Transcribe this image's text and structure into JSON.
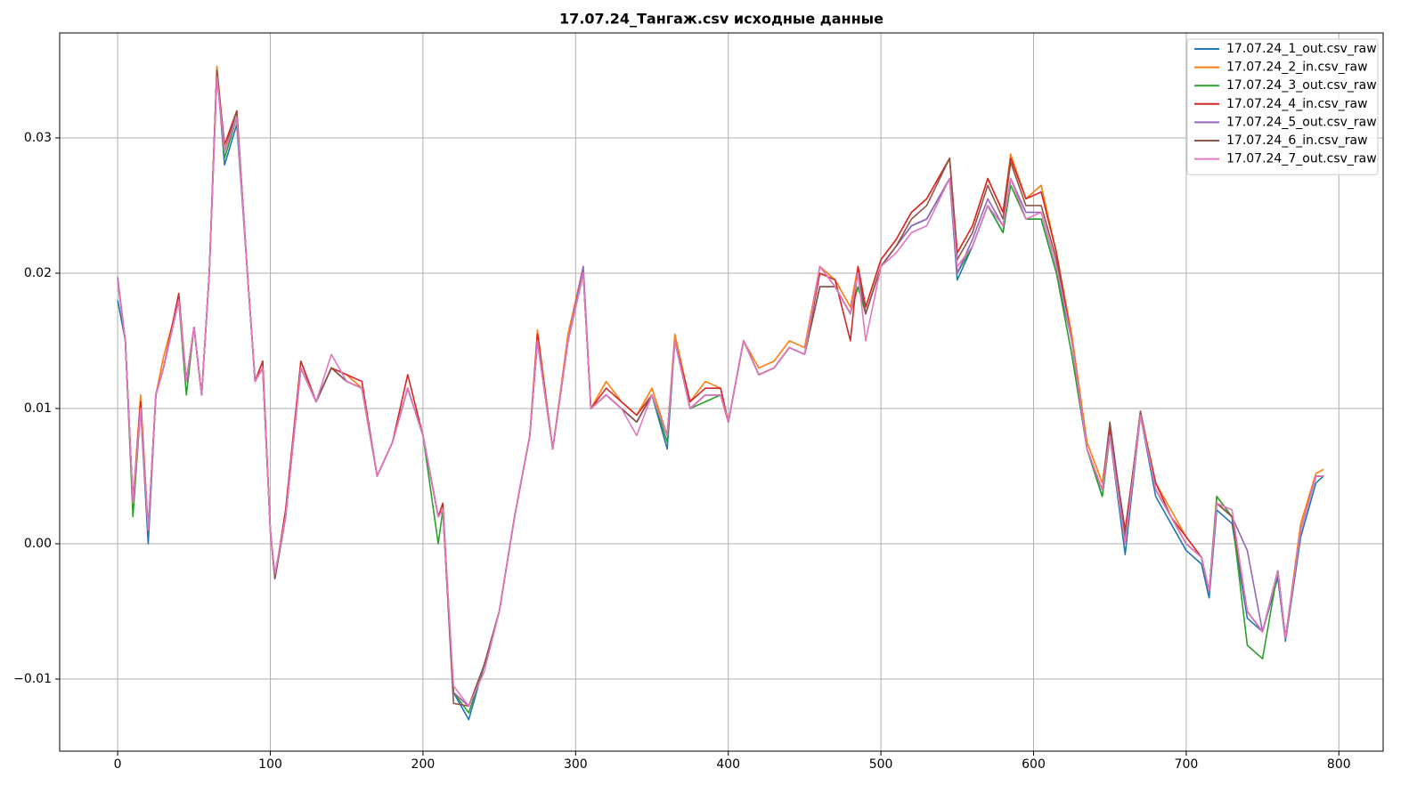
{
  "chart_data": {
    "type": "line",
    "title": "17.07.24_Тангаж.csv исходные данные",
    "x": [
      0,
      5,
      10,
      15,
      20,
      25,
      30,
      40,
      45,
      50,
      55,
      60,
      65,
      70,
      78,
      85,
      90,
      95,
      100,
      103,
      110,
      120,
      130,
      140,
      150,
      160,
      170,
      180,
      190,
      200,
      210,
      213,
      220,
      230,
      240,
      250,
      260,
      270,
      275,
      285,
      295,
      305,
      310,
      320,
      330,
      340,
      350,
      360,
      365,
      375,
      385,
      395,
      400,
      410,
      420,
      430,
      440,
      450,
      460,
      470,
      480,
      485,
      490,
      500,
      510,
      520,
      530,
      545,
      550,
      560,
      570,
      580,
      585,
      595,
      605,
      615,
      625,
      635,
      645,
      650,
      660,
      670,
      680,
      690,
      700,
      710,
      715,
      720,
      730,
      740,
      750,
      760,
      765,
      775,
      785,
      790
    ],
    "series": [
      {
        "name": "17.07.24_1_out.csv_raw",
        "color": "#1f77b4",
        "values": [
          0.018,
          0.015,
          0.003,
          0.01,
          0,
          0.011,
          0.013,
          0.018,
          0.012,
          0.016,
          0.011,
          0.02,
          0.035,
          0.028,
          0.031,
          0.02,
          0.012,
          0.013,
          0.001,
          -0.0025,
          0.002,
          0.013,
          0.0105,
          0.013,
          0.012,
          0.0115,
          0.005,
          0.0075,
          0.0115,
          0.008,
          0.002,
          0.0025,
          -0.011,
          -0.013,
          -0.009,
          -0.005,
          0.002,
          0.008,
          0.015,
          0.007,
          0.015,
          0.02,
          0.01,
          0.011,
          0.01,
          0.009,
          0.011,
          0.007,
          0.015,
          0.01,
          0.011,
          0.011,
          0.009,
          0.015,
          0.0125,
          0.013,
          0.0145,
          0.014,
          0.019,
          0.019,
          0.017,
          0.02,
          0.017,
          0.0205,
          0.022,
          0.0235,
          0.024,
          0.027,
          0.0195,
          0.022,
          0.025,
          0.023,
          0.027,
          0.024,
          0.024,
          0.02,
          0.015,
          0.007,
          0.0035,
          0.008,
          -0.0008,
          0.0095,
          0.0035,
          0.0015,
          -0.0005,
          -0.0015,
          -0.004,
          0.0025,
          0.0015,
          -0.0055,
          -0.0065,
          -0.0025,
          -0.0072,
          0.0005,
          0.0045,
          0.005
        ]
      },
      {
        "name": "17.07.24_2_in.csv_raw",
        "color": "#ff7f0e",
        "values": [
          0.0195,
          0.015,
          0.003,
          0.011,
          0.001,
          0.011,
          0.0138,
          0.018,
          0.012,
          0.016,
          0.011,
          0.02,
          0.0353,
          0.029,
          0.032,
          0.02,
          0.012,
          0.0135,
          0.001,
          -0.0025,
          0.002,
          0.0135,
          0.0105,
          0.013,
          0.0125,
          0.0115,
          0.005,
          0.0075,
          0.0115,
          0.008,
          0.002,
          0.0025,
          -0.011,
          -0.012,
          -0.009,
          -0.005,
          0.002,
          0.008,
          0.0158,
          0.007,
          0.0155,
          0.0205,
          0.01,
          0.012,
          0.0105,
          0.0095,
          0.0115,
          0.008,
          0.0155,
          0.0105,
          0.012,
          0.0115,
          0.009,
          0.015,
          0.013,
          0.0135,
          0.015,
          0.0145,
          0.0205,
          0.0195,
          0.0175,
          0.0205,
          0.0175,
          0.021,
          0.0225,
          0.0245,
          0.0255,
          0.0285,
          0.0215,
          0.0235,
          0.027,
          0.0245,
          0.0288,
          0.0255,
          0.0265,
          0.0215,
          0.0155,
          0.0075,
          0.0045,
          0.0085,
          0.0005,
          0.0098,
          0.0045,
          0.0025,
          0.0005,
          -0.001,
          -0.0035,
          0.0035,
          0.002,
          -0.005,
          -0.0065,
          -0.002,
          -0.007,
          0.0015,
          0.0052,
          0.0055
        ]
      },
      {
        "name": "17.07.24_3_out.csv_raw",
        "color": "#2ca02c",
        "values": [
          0.0195,
          0.015,
          0.002,
          0.01,
          0.001,
          0.011,
          0.013,
          0.018,
          0.011,
          0.016,
          0.011,
          0.02,
          0.035,
          0.0285,
          0.0315,
          0.02,
          0.012,
          0.013,
          0.001,
          -0.0025,
          0.002,
          0.013,
          0.0105,
          0.013,
          0.012,
          0.0115,
          0.005,
          0.0075,
          0.0115,
          0.008,
          0,
          0.0025,
          -0.011,
          -0.0125,
          -0.009,
          -0.005,
          0.002,
          0.008,
          0.015,
          0.007,
          0.015,
          0.02,
          0.01,
          0.011,
          0.01,
          0.009,
          0.011,
          0.0075,
          0.015,
          0.01,
          0.0105,
          0.011,
          0.009,
          0.015,
          0.0125,
          0.013,
          0.0145,
          0.014,
          0.019,
          0.019,
          0.017,
          0.019,
          0.017,
          0.0205,
          0.022,
          0.0235,
          0.024,
          0.027,
          0.02,
          0.022,
          0.025,
          0.023,
          0.0265,
          0.024,
          0.024,
          0.02,
          0.014,
          0.007,
          0.0035,
          0.008,
          0,
          0.0095,
          0.004,
          0.002,
          0,
          -0.001,
          -0.0035,
          0.0035,
          0.002,
          -0.0075,
          -0.0085,
          -0.002,
          -0.007,
          0.001,
          0.005,
          0.005
        ]
      },
      {
        "name": "17.07.24_4_in.csv_raw",
        "color": "#d62728",
        "values": [
          0.0195,
          0.015,
          0.003,
          0.0105,
          0.001,
          0.011,
          0.013,
          0.0185,
          0.012,
          0.016,
          0.011,
          0.02,
          0.035,
          0.0295,
          0.032,
          0.02,
          0.012,
          0.0135,
          0.001,
          -0.0025,
          0.0025,
          0.0135,
          0.0105,
          0.013,
          0.0125,
          0.012,
          0.005,
          0.0075,
          0.0125,
          0.008,
          0.002,
          0.003,
          -0.011,
          -0.012,
          -0.009,
          -0.005,
          0.002,
          0.008,
          0.0155,
          0.007,
          0.015,
          0.02,
          0.01,
          0.0115,
          0.0105,
          0.0095,
          0.011,
          0.008,
          0.015,
          0.0105,
          0.0115,
          0.0115,
          0.009,
          0.015,
          0.0125,
          0.013,
          0.0145,
          0.014,
          0.02,
          0.0195,
          0.015,
          0.0205,
          0.0175,
          0.021,
          0.0225,
          0.0245,
          0.0255,
          0.0285,
          0.0215,
          0.0235,
          0.027,
          0.0245,
          0.0285,
          0.0255,
          0.026,
          0.0215,
          0.015,
          0.007,
          0.004,
          0.0085,
          0.001,
          0.0095,
          0.0045,
          0.002,
          0.0005,
          -0.001,
          -0.0035,
          0.003,
          0.002,
          -0.005,
          -0.0065,
          -0.002,
          -0.007,
          0.001,
          0.005,
          0.005
        ]
      },
      {
        "name": "17.07.24_5_out.csv_raw",
        "color": "#9467bd",
        "values": [
          0.0197,
          0.015,
          0.003,
          0.01,
          0.001,
          0.011,
          0.013,
          0.018,
          0.012,
          0.016,
          0.011,
          0.02,
          0.0345,
          0.029,
          0.0315,
          0.02,
          0.012,
          0.013,
          0.001,
          -0.0025,
          0.002,
          0.013,
          0.0105,
          0.013,
          0.012,
          0.0115,
          0.005,
          0.0075,
          0.0115,
          0.008,
          0.002,
          0.0025,
          -0.011,
          -0.012,
          -0.009,
          -0.005,
          0.002,
          0.008,
          0.015,
          0.007,
          0.015,
          0.0205,
          0.01,
          0.011,
          0.01,
          0.009,
          0.011,
          0.008,
          0.015,
          0.01,
          0.011,
          0.011,
          0.009,
          0.015,
          0.0125,
          0.013,
          0.0145,
          0.014,
          0.0205,
          0.019,
          0.017,
          0.02,
          0.017,
          0.0205,
          0.022,
          0.0235,
          0.024,
          0.027,
          0.02,
          0.0225,
          0.0255,
          0.0235,
          0.027,
          0.0245,
          0.0245,
          0.0205,
          0.015,
          0.007,
          0.004,
          0.008,
          0,
          0.0095,
          0.004,
          0.002,
          0,
          -0.001,
          -0.0035,
          0.003,
          0.002,
          -0.0005,
          -0.0065,
          -0.002,
          -0.007,
          0.001,
          0.005,
          0.005
        ]
      },
      {
        "name": "17.07.24_6_in.csv_raw",
        "color": "#8c564b",
        "values": [
          0.0195,
          0.015,
          0.003,
          0.01,
          0.001,
          0.011,
          0.013,
          0.018,
          0.012,
          0.016,
          0.011,
          0.02,
          0.035,
          0.029,
          0.032,
          0.02,
          0.012,
          0.013,
          0.001,
          -0.0026,
          0.002,
          0.013,
          0.0105,
          0.013,
          0.012,
          0.0115,
          0.005,
          0.0075,
          0.0115,
          0.008,
          0.002,
          0.0025,
          -0.0118,
          -0.012,
          -0.009,
          -0.005,
          0.002,
          0.008,
          0.015,
          0.007,
          0.015,
          0.02,
          0.01,
          0.011,
          0.01,
          0.009,
          0.011,
          0.008,
          0.015,
          0.01,
          0.011,
          0.011,
          0.009,
          0.015,
          0.0125,
          0.013,
          0.0145,
          0.014,
          0.019,
          0.019,
          0.017,
          0.02,
          0.017,
          0.0205,
          0.022,
          0.024,
          0.025,
          0.0285,
          0.021,
          0.023,
          0.0265,
          0.024,
          0.0282,
          0.025,
          0.025,
          0.021,
          0.015,
          0.007,
          0.004,
          0.009,
          0.0005,
          0.0098,
          0.004,
          0.002,
          0,
          -0.001,
          -0.0035,
          0.003,
          0.002,
          -0.005,
          -0.0065,
          -0.002,
          -0.007,
          0.001,
          0.005,
          0.005
        ]
      },
      {
        "name": "17.07.24_7_out.csv_raw",
        "color": "#e377c2",
        "values": [
          0.0195,
          0.015,
          0.003,
          0.01,
          0.001,
          0.011,
          0.013,
          0.018,
          0.012,
          0.016,
          0.011,
          0.02,
          0.0345,
          0.029,
          0.0315,
          0.02,
          0.012,
          0.013,
          0.001,
          -0.0022,
          0.002,
          0.013,
          0.0105,
          0.014,
          0.012,
          0.0115,
          0.005,
          0.0075,
          0.0115,
          0.008,
          0.002,
          0.0025,
          -0.0105,
          -0.012,
          -0.0095,
          -0.005,
          0.002,
          0.008,
          0.015,
          0.007,
          0.015,
          0.02,
          0.01,
          0.011,
          0.01,
          0.008,
          0.011,
          0.008,
          0.015,
          0.01,
          0.011,
          0.011,
          0.009,
          0.015,
          0.0125,
          0.013,
          0.0145,
          0.014,
          0.0205,
          0.019,
          0.017,
          0.02,
          0.015,
          0.0205,
          0.0215,
          0.023,
          0.0235,
          0.027,
          0.0205,
          0.022,
          0.025,
          0.0235,
          0.027,
          0.024,
          0.0245,
          0.0205,
          0.015,
          0.007,
          0.004,
          0.008,
          0,
          0.0095,
          0.004,
          0.002,
          0,
          -0.001,
          -0.0035,
          0.003,
          0.0025,
          -0.005,
          -0.0065,
          -0.002,
          -0.007,
          0.001,
          0.005,
          0.005
        ]
      }
    ],
    "xlim": [
      -38,
      829
    ],
    "ylim": [
      -0.01533,
      0.03776
    ],
    "xticks": [
      0,
      100,
      200,
      300,
      400,
      500,
      600,
      700,
      800
    ],
    "yticks": [
      {
        "value": -0.01,
        "label": "−0.01"
      },
      {
        "value": 0,
        "label": "0.00"
      },
      0.01,
      0.02,
      0.03
    ],
    "grid": true,
    "legend": "upper right"
  }
}
